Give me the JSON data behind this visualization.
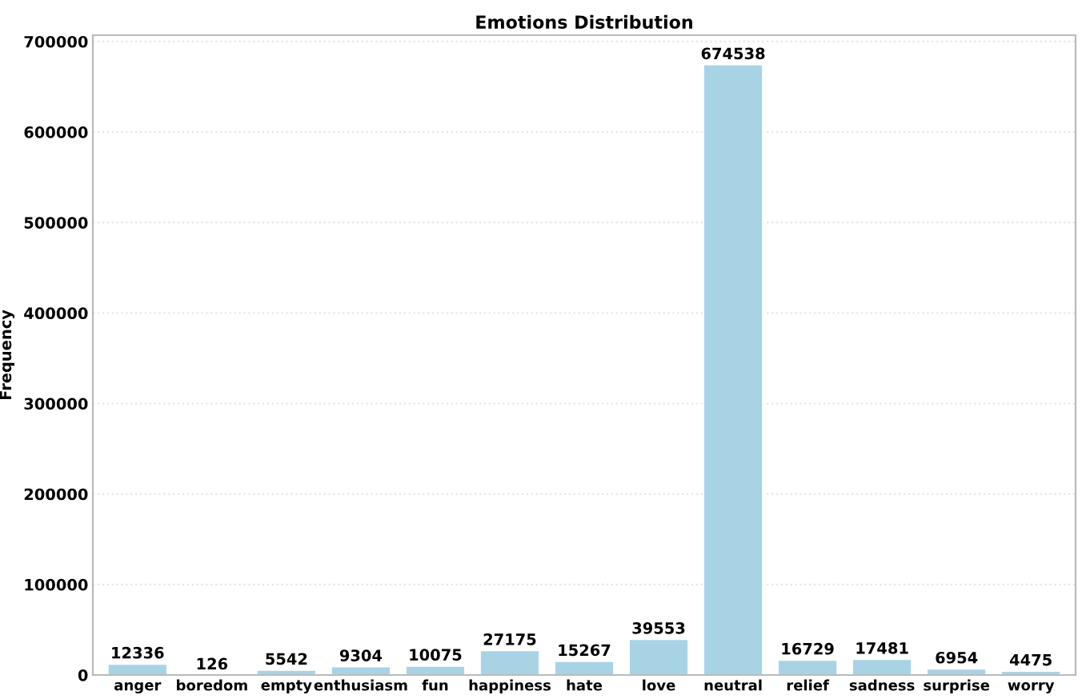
{
  "chart_data": {
    "type": "bar",
    "title": "Emotions Distribution",
    "ylabel": "Frequency",
    "categories": [
      "anger",
      "boredom",
      "empty",
      "enthusiasm",
      "fun",
      "happiness",
      "hate",
      "love",
      "neutral",
      "relief",
      "sadness",
      "surprise",
      "worry"
    ],
    "values": [
      12336,
      126,
      5542,
      9304,
      10075,
      27175,
      15267,
      39553,
      674538,
      16729,
      17481,
      6954,
      4475
    ],
    "color": "#a8d3e5",
    "ylim": [
      0,
      707000
    ],
    "yticks": [
      0,
      100000,
      200000,
      300000,
      400000,
      500000,
      600000,
      700000
    ],
    "grid": "y",
    "data_labels": true
  }
}
